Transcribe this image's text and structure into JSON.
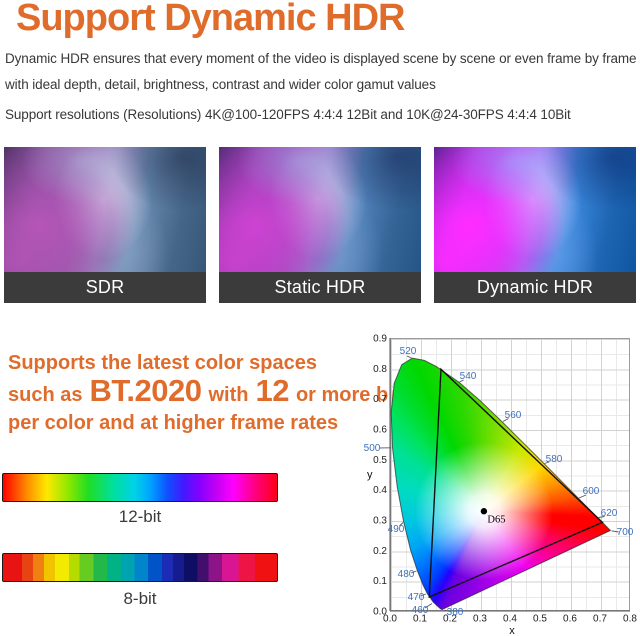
{
  "colors": {
    "accent_orange": "#e06c2c",
    "panel_label_bg": "#3b3b3b",
    "panel_label_text": "#ffffff",
    "wavelength_label_blue": "#4070b8",
    "body_text": "#383838"
  },
  "header": {
    "title": "Support Dynamic HDR"
  },
  "intro": {
    "paragraph": "Dynamic HDR ensures that every moment of the video is displayed scene by scene or even frame by frame with ideal depth, detail, brightness, contrast and wider color gamut values",
    "resolutions": "Support resolutions (Resolutions) 4K@100-120FPS 4:4:4 12Bit and 10K@24-30FPS 4:4:4 10Bit"
  },
  "comparison": {
    "panels": [
      {
        "label": "SDR"
      },
      {
        "label": "Static HDR"
      },
      {
        "label": "Dynamic HDR"
      }
    ]
  },
  "color_spaces": {
    "line1": "Supports the latest color spaces",
    "line2_pre": "such as",
    "line2_big1": "BT.2020",
    "line2_mid": "with",
    "line2_big2": "12",
    "line2_post": "or more bits",
    "line3": "per color and at higher frame rates"
  },
  "gradient_bars": [
    {
      "label": "12-bit",
      "style": "smooth-gradient"
    },
    {
      "label": "8-bit",
      "style": "banded-gradient"
    }
  ],
  "chart_data": {
    "type": "area",
    "subtype": "CIE 1931 xy chromaticity diagram",
    "title": "",
    "xlabel": "x",
    "ylabel": "y",
    "xlim": [
      0.0,
      0.8
    ],
    "ylim": [
      0.0,
      0.9
    ],
    "x_ticks": [
      "0.0",
      "0.1",
      "0.2",
      "0.3",
      "0.4",
      "0.5",
      "0.6",
      "0.7",
      "0.8"
    ],
    "y_ticks": [
      "0.0",
      "0.1",
      "0.2",
      "0.3",
      "0.4",
      "0.5",
      "0.6",
      "0.7",
      "0.8",
      "0.9"
    ],
    "grid": true,
    "grid_step": 0.05,
    "wavelength_labels_nm": [
      380,
      460,
      470,
      480,
      490,
      500,
      520,
      540,
      560,
      580,
      600,
      620,
      700
    ],
    "white_point": {
      "label": "D65",
      "x": 0.313,
      "y": 0.329
    },
    "gamut_triangle_vertices_xy": [
      [
        0.17,
        0.797
      ],
      [
        0.708,
        0.292
      ],
      [
        0.131,
        0.046
      ]
    ]
  }
}
